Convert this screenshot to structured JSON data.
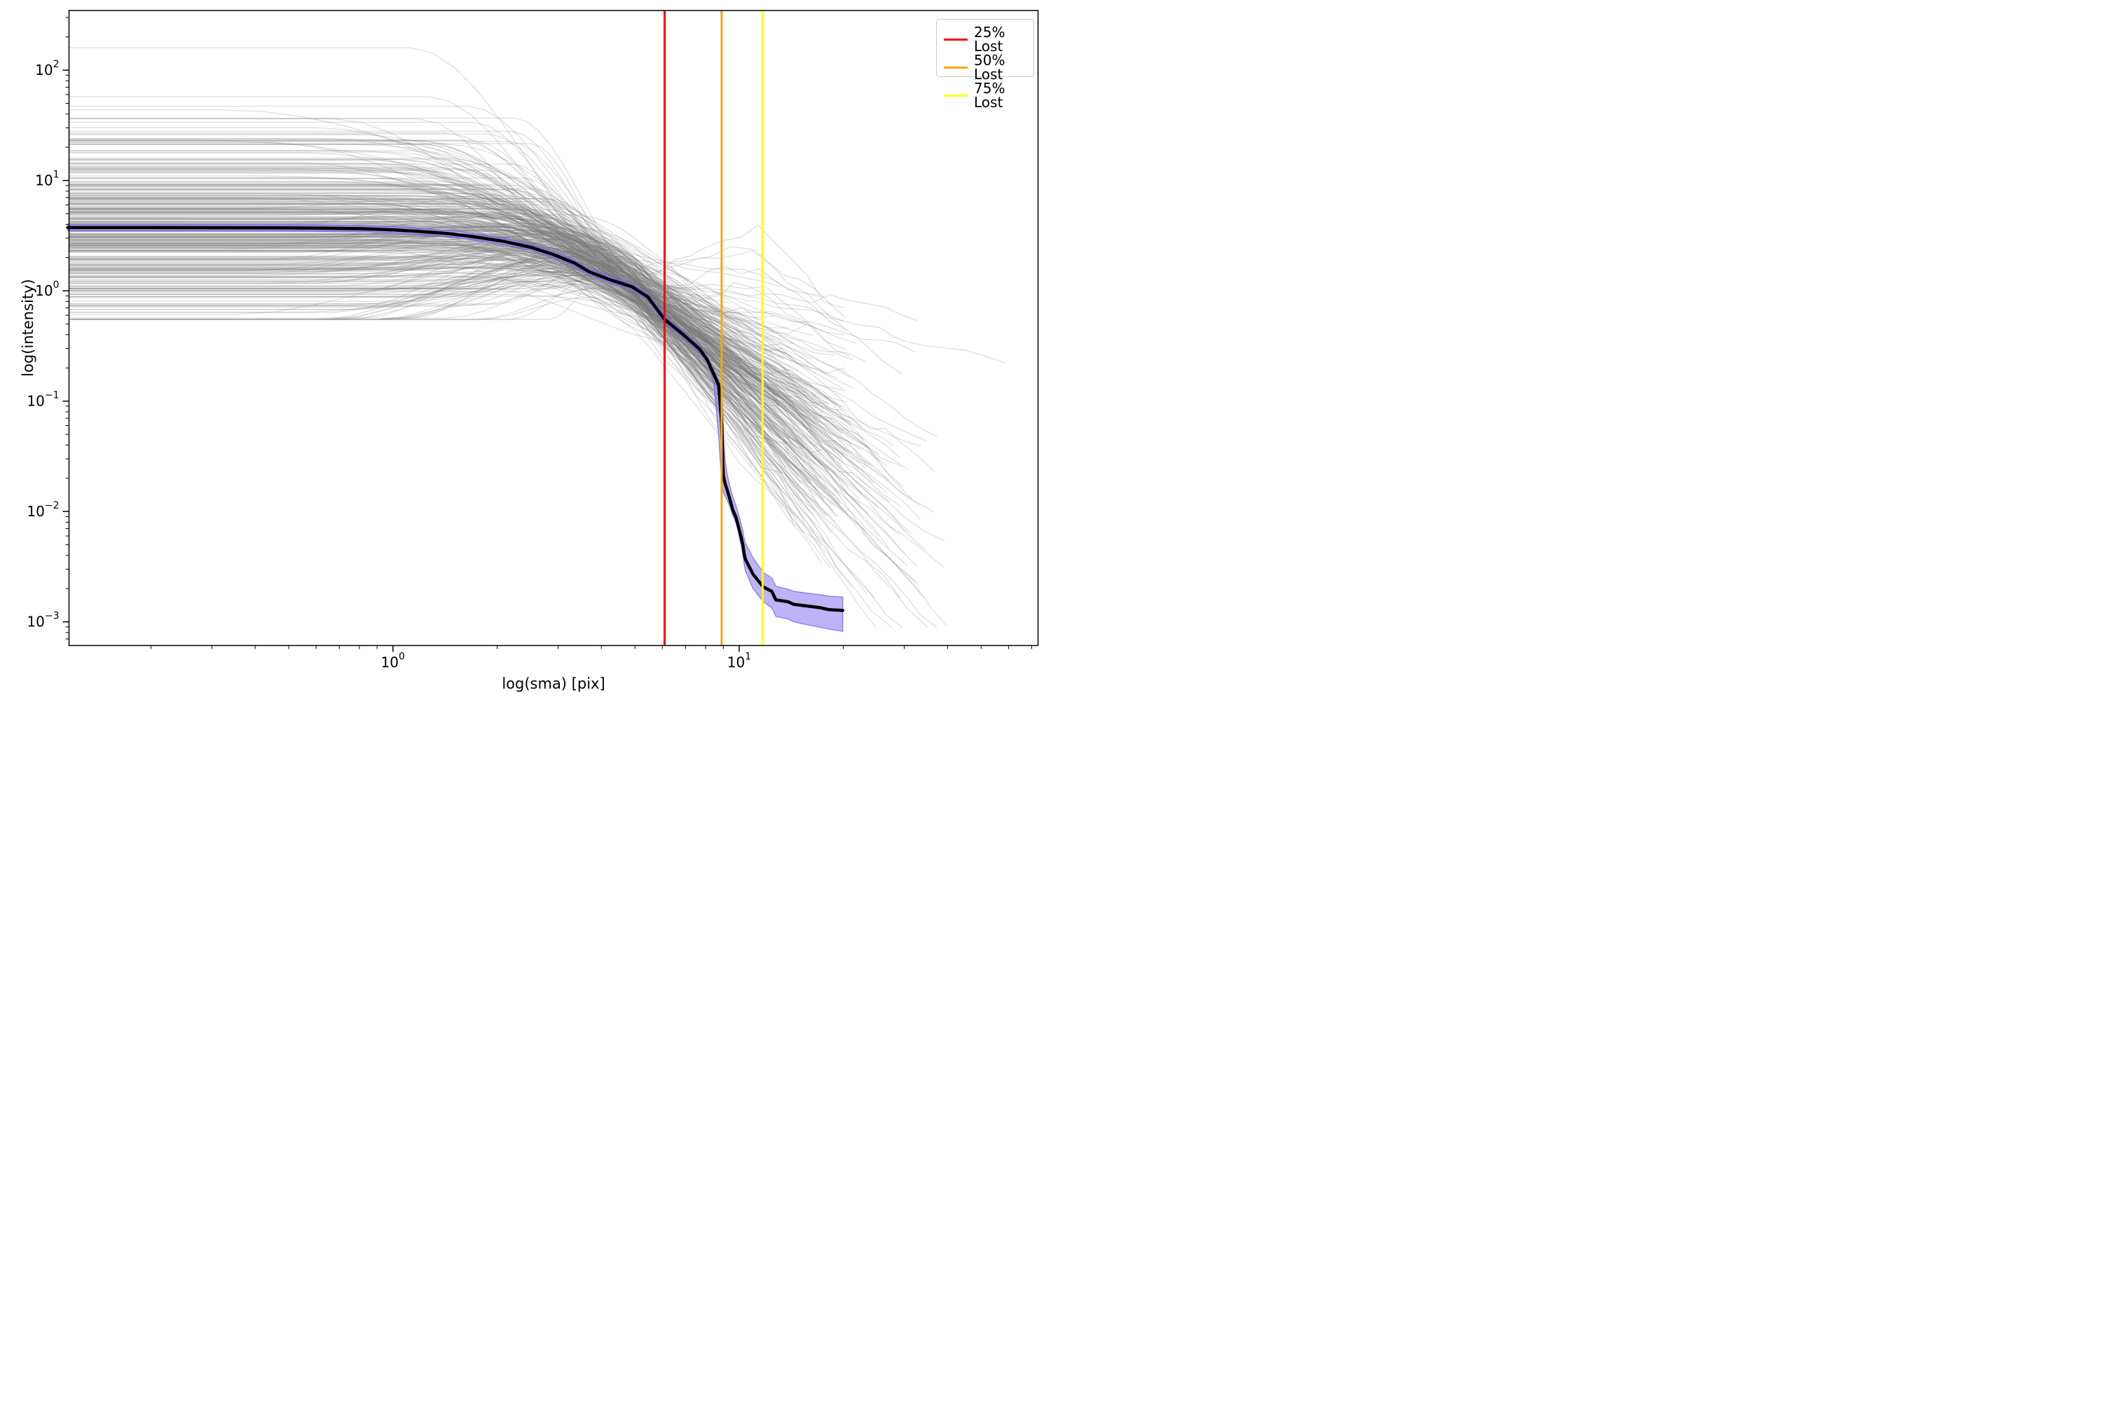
{
  "chart_data": {
    "type": "line",
    "title": "",
    "xlabel": "log(sma) [pix]",
    "ylabel": "log(intensity)",
    "x_scale": "log",
    "y_scale": "log",
    "xlim": [
      0.116,
      73
    ],
    "ylim": [
      0.00061,
      347
    ],
    "tick_base": 10,
    "x_major_tick_exponents": [
      0,
      1
    ],
    "y_major_tick_exponents": [
      2,
      1,
      0,
      -1,
      -2,
      -3
    ],
    "grid": false,
    "legend": {
      "position": "upper right",
      "entries": [
        {
          "label": "25% Lost",
          "color": "#ff0000"
        },
        {
          "label": "50% Lost",
          "color": "#ffa500"
        },
        {
          "label": "75% Lost",
          "color": "#ffff00"
        }
      ]
    },
    "vlines": [
      {
        "name": "25% Lost",
        "x": 6.09,
        "color": "#ff0000",
        "width": 6
      },
      {
        "name": "50% Lost",
        "x": 8.9,
        "color": "#ffa500",
        "width": 6
      },
      {
        "name": "75% Lost",
        "x": 11.69,
        "color": "#ffff00",
        "width": 6
      }
    ],
    "median_profile": {
      "color": "#000000",
      "width": 9,
      "sma": [
        0.115,
        0.2,
        0.3,
        0.45,
        0.6,
        0.8,
        1.0,
        1.2,
        1.45,
        1.7,
        2.1,
        2.5,
        2.9,
        3.34,
        3.7,
        4.3,
        4.9,
        5.45,
        6.09,
        6.9,
        7.7,
        8.1,
        8.45,
        8.73,
        8.81,
        8.9,
        8.94,
        8.97,
        9.0,
        9.04,
        9.1,
        9.22,
        9.33,
        9.45,
        9.56,
        9.68,
        9.79,
        9.9,
        10.02,
        10.14,
        10.26,
        10.33,
        10.42,
        10.97,
        11.74,
        12.42,
        12.77,
        13.85,
        14.38,
        15.72,
        17.22,
        18.13,
        19.92
      ],
      "intensity": [
        3.74,
        3.74,
        3.73,
        3.72,
        3.7,
        3.66,
        3.57,
        3.45,
        3.3,
        3.1,
        2.8,
        2.48,
        2.14,
        1.79,
        1.48,
        1.24,
        1.09,
        0.88,
        0.55,
        0.4,
        0.295,
        0.235,
        0.175,
        0.139,
        0.097,
        0.063,
        0.041,
        0.028,
        0.0215,
        0.0199,
        0.018,
        0.0159,
        0.0141,
        0.0122,
        0.0106,
        0.0096,
        0.0089,
        0.0078,
        0.0067,
        0.0058,
        0.0049,
        0.0042,
        0.0037,
        0.0027,
        0.00207,
        0.00189,
        0.00158,
        0.00152,
        0.00144,
        0.00139,
        0.00134,
        0.00129,
        0.00127
      ]
    },
    "uncertainty_band": {
      "color": "#7b68ee",
      "fill_opacity": 0.5,
      "upper": [
        4.0,
        4.0,
        3.99,
        3.98,
        3.96,
        3.92,
        3.82,
        3.69,
        3.53,
        3.32,
        3.0,
        2.65,
        2.29,
        1.92,
        1.58,
        1.33,
        1.17,
        0.94,
        0.59,
        0.43,
        0.316,
        0.251,
        0.19,
        0.158,
        0.135,
        0.115,
        0.1,
        0.085,
        0.062,
        0.043,
        0.03,
        0.0225,
        0.0188,
        0.016,
        0.014,
        0.0124,
        0.0113,
        0.0101,
        0.0088,
        0.0077,
        0.0066,
        0.0058,
        0.0052,
        0.0038,
        0.0028,
        0.0025,
        0.0021,
        0.00198,
        0.00189,
        0.00182,
        0.00176,
        0.00171,
        0.00168
      ],
      "lower": [
        3.5,
        3.5,
        3.49,
        3.48,
        3.46,
        3.42,
        3.34,
        3.23,
        3.09,
        2.9,
        2.62,
        2.32,
        2.0,
        1.67,
        1.38,
        1.16,
        1.02,
        0.82,
        0.51,
        0.374,
        0.276,
        0.22,
        0.145,
        0.048,
        0.03,
        0.02,
        0.017,
        0.0158,
        0.015,
        0.0145,
        0.0138,
        0.0128,
        0.0118,
        0.0106,
        0.0094,
        0.0086,
        0.0079,
        0.0069,
        0.0058,
        0.0049,
        0.004,
        0.0034,
        0.0029,
        0.002,
        0.00152,
        0.00134,
        0.00112,
        0.00106,
        0.001,
        0.00094,
        0.00089,
        0.00086,
        0.00082
      ]
    },
    "ensemble": {
      "description": "individual galaxy intensity profiles",
      "count": 380,
      "seed": 42,
      "color": "#777777",
      "alpha": 0.3,
      "width": 2,
      "x_start": 0.116,
      "i0_log_mean": 0.54,
      "i0_log_sigma": 0.42,
      "i0_min": 0.55,
      "i0_max": 170,
      "break_log_mean": 0.02,
      "break_log_sigma": 0.22,
      "pinch_x": 5.0,
      "pinch_log_mean": 0.04,
      "pinch_log_sigma": 0.13,
      "slope_mean": -2.6,
      "slope_sigma": 0.9,
      "end_log_mean": 1.16,
      "end_log_sigma": 0.17,
      "riser_count": 6
    }
  }
}
